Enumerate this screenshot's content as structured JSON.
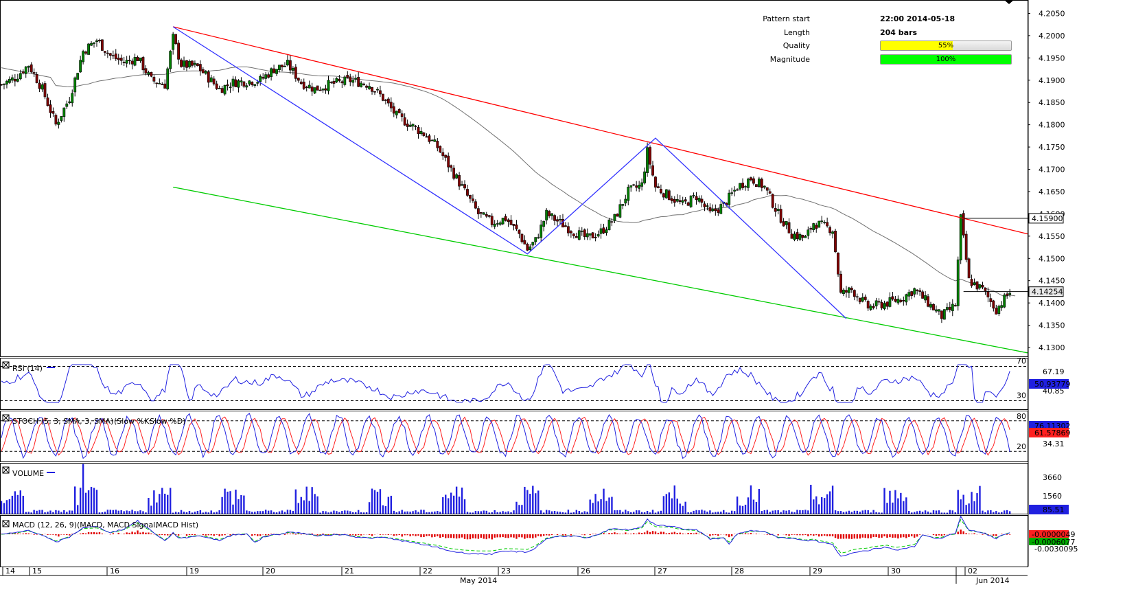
{
  "pattern_info": {
    "pattern_start_label": "Pattern start",
    "pattern_start_value": "22:00 2014-05-18",
    "length_label": "Length",
    "length_value": "204 bars",
    "quality_label": "Quality",
    "quality_value": "55%",
    "quality_fraction": 0.55,
    "quality_color": "#ffff00",
    "magnitude_label": "Magnitude",
    "magnitude_value": "100%",
    "magnitude_fraction": 1.0,
    "magnitude_color": "#00ff00"
  },
  "chart_data": [
    {
      "type": "candlestick",
      "panel": "price",
      "ylim": [
        4.128,
        4.208
      ],
      "y_ticks": [
        "4.2050",
        "4.2000",
        "4.1950",
        "4.1900",
        "4.1850",
        "4.1800",
        "4.1750",
        "4.1700",
        "4.1650",
        "4.1600",
        "4.1550",
        "4.1500",
        "4.1450",
        "4.1400",
        "4.1350",
        "4.1300"
      ],
      "price_tags": [
        {
          "label": "4.15900",
          "value": 4.159
        },
        {
          "label": "4.14254",
          "value": 4.14254
        }
      ],
      "x_label": "May 2014",
      "x_label_2": "Jun 2014",
      "x_ticks": [
        "14",
        "15",
        "16",
        "19",
        "20",
        "21",
        "22",
        "23",
        "26",
        "27",
        "28",
        "29",
        "30",
        "02"
      ],
      "bar_count": 204,
      "close_path": [
        [
          0,
          4.189
        ],
        [
          5,
          4.1905
        ],
        [
          10,
          4.1935
        ],
        [
          15,
          4.188
        ],
        [
          20,
          4.18
        ],
        [
          25,
          4.186
        ],
        [
          30,
          4.1965
        ],
        [
          35,
          4.199
        ],
        [
          40,
          4.1955
        ],
        [
          45,
          4.194
        ],
        [
          50,
          4.195
        ],
        [
          55,
          4.19
        ],
        [
          60,
          4.189
        ],
        [
          63,
          4.1995
        ],
        [
          66,
          4.1935
        ],
        [
          72,
          4.193
        ],
        [
          80,
          4.188
        ],
        [
          85,
          4.1895
        ],
        [
          95,
          4.19
        ],
        [
          100,
          4.1925
        ],
        [
          105,
          4.1935
        ],
        [
          110,
          4.1895
        ],
        [
          115,
          4.188
        ],
        [
          120,
          4.189
        ],
        [
          128,
          4.19
        ],
        [
          135,
          4.189
        ],
        [
          140,
          4.186
        ],
        [
          145,
          4.182
        ],
        [
          150,
          4.18
        ],
        [
          155,
          4.178
        ],
        [
          160,
          4.175
        ],
        [
          165,
          4.17
        ],
        [
          170,
          4.165
        ],
        [
          175,
          4.16
        ],
        [
          180,
          4.158
        ],
        [
          185,
          4.159
        ],
        [
          190,
          4.1555
        ],
        [
          193,
          4.152
        ],
        [
          196,
          4.154
        ],
        [
          200,
          4.16
        ],
        [
          205,
          4.158
        ],
        [
          210,
          4.156
        ],
        [
          215,
          4.1545
        ],
        [
          220,
          4.156
        ],
        [
          225,
          4.159
        ],
        [
          230,
          4.165
        ],
        [
          235,
          4.1665
        ],
        [
          237,
          4.174
        ],
        [
          240,
          4.166
        ],
        [
          245,
          4.164
        ],
        [
          250,
          4.162
        ],
        [
          255,
          4.164
        ],
        [
          260,
          4.16
        ],
        [
          265,
          4.162
        ],
        [
          270,
          4.166
        ],
        [
          275,
          4.168
        ],
        [
          280,
          4.166
        ],
        [
          285,
          4.16
        ],
        [
          290,
          4.1555
        ],
        [
          295,
          4.1545
        ],
        [
          298,
          4.158
        ],
        [
          305,
          4.1565
        ],
        [
          308,
          4.142
        ],
        [
          312,
          4.143
        ],
        [
          318,
          4.139
        ],
        [
          325,
          4.14
        ],
        [
          330,
          4.141
        ],
        [
          335,
          4.143
        ],
        [
          340,
          4.14
        ],
        [
          345,
          4.137
        ],
        [
          350,
          4.1395
        ],
        [
          352,
          4.159
        ],
        [
          355,
          4.145
        ],
        [
          360,
          4.143
        ],
        [
          365,
          4.1385
        ],
        [
          370,
          4.1425
        ]
      ],
      "overlays": [
        {
          "name": "upper trendline",
          "color": "#ff0000",
          "points": [
            [
              4.202,
              63
            ],
            [
              4.1555,
              384
            ]
          ]
        },
        {
          "name": "lower trendline",
          "color": "#00cc00",
          "points": [
            [
              4.166,
              63
            ],
            [
              4.1288,
              384
            ]
          ]
        },
        {
          "name": "zigzag",
          "color": "#3333ff",
          "points": [
            [
              63,
              4.202
            ],
            [
              193,
              4.151
            ],
            [
              240,
              4.177
            ],
            [
              310,
              4.1365
            ]
          ]
        },
        {
          "name": "moving average",
          "color": "#808080"
        }
      ]
    },
    {
      "type": "line",
      "panel": "rsi",
      "label": "RSI (14)",
      "levels": [
        "70",
        "30"
      ],
      "tick_values": [
        "67.19",
        "40.85"
      ],
      "current_value": "50.93779",
      "ylim": [
        20,
        80
      ]
    },
    {
      "type": "line",
      "panel": "stoch",
      "label": "STOCH (5, 3, SMA, 3, SMA)",
      "legend_k": "(Slow %K,",
      "legend_d": "Slow %D)",
      "levels": [
        "80",
        "20"
      ],
      "tick_values": [
        "34.31"
      ],
      "current_k": "76.11302",
      "current_d": "61.57869"
    },
    {
      "type": "bar",
      "panel": "volume",
      "label": "VOLUME",
      "tick_values": [
        "3660",
        "1560"
      ],
      "current_value": "85.51"
    },
    {
      "type": "line",
      "panel": "macd",
      "label": "MACD (12, 26, 9)",
      "legend_macd": "(MACD,",
      "legend_signal": "MACD Signal,",
      "legend_hist": "MACD Hist)",
      "tick_values": [
        "-0.0030095"
      ],
      "current_hist": "-0.0000049",
      "current_signal": "-0.0006077"
    }
  ],
  "colors": {
    "candle_up": "#008000",
    "candle_down": "#800000",
    "blue_line": "#2020e0",
    "red_line": "#ff2020",
    "green_dash": "#00cc00",
    "macd_hist": "#e00000",
    "volume_bar": "#2020e0"
  }
}
